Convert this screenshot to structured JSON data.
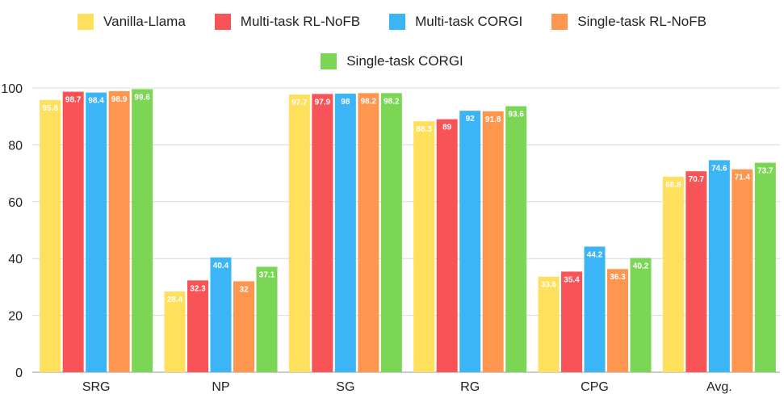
{
  "chart_data": {
    "type": "bar",
    "title": "",
    "xlabel": "",
    "ylabel": "",
    "ylim": [
      0,
      100
    ],
    "yticks": [
      "0",
      "20",
      "40",
      "60",
      "80",
      "100"
    ],
    "grid": true,
    "legend_position": "top-center",
    "categories": [
      "SRG",
      "NP",
      "SG",
      "RG",
      "CPG",
      "Avg."
    ],
    "series": [
      {
        "name": "Vanilla-Llama",
        "color": "#FFE05C",
        "values": [
          95.8,
          28.4,
          97.7,
          88.3,
          33.6,
          68.8
        ],
        "labels": [
          "95.8",
          "28.4",
          "97.7",
          "88.3",
          "33.6",
          "68.8"
        ]
      },
      {
        "name": "Multi-task RL-NoFB",
        "color": "#F85357",
        "values": [
          98.7,
          32.3,
          97.9,
          89,
          35.4,
          70.7
        ],
        "labels": [
          "98.7",
          "32.3",
          "97.9",
          "89",
          "35.4",
          "70.7"
        ]
      },
      {
        "name": "Multi-task CORGI",
        "color": "#3BB5F5",
        "values": [
          98.4,
          40.4,
          98,
          92,
          44.2,
          74.6
        ],
        "labels": [
          "98.4",
          "40.4",
          "98",
          "92",
          "44.2",
          "74.6"
        ]
      },
      {
        "name": "Single-task RL-NoFB",
        "color": "#FF9650",
        "values": [
          98.9,
          32,
          98.2,
          91.8,
          36.3,
          71.4
        ],
        "labels": [
          "98.9",
          "32",
          "98.2",
          "91.8",
          "36.3",
          "71.4"
        ]
      },
      {
        "name": "Single-task CORGI",
        "color": "#7CD656",
        "values": [
          99.6,
          37.1,
          98.2,
          93.6,
          40.2,
          73.7
        ],
        "labels": [
          "99.6",
          "37.1",
          "98.2",
          "93.6",
          "40.2",
          "73.7"
        ]
      }
    ]
  }
}
